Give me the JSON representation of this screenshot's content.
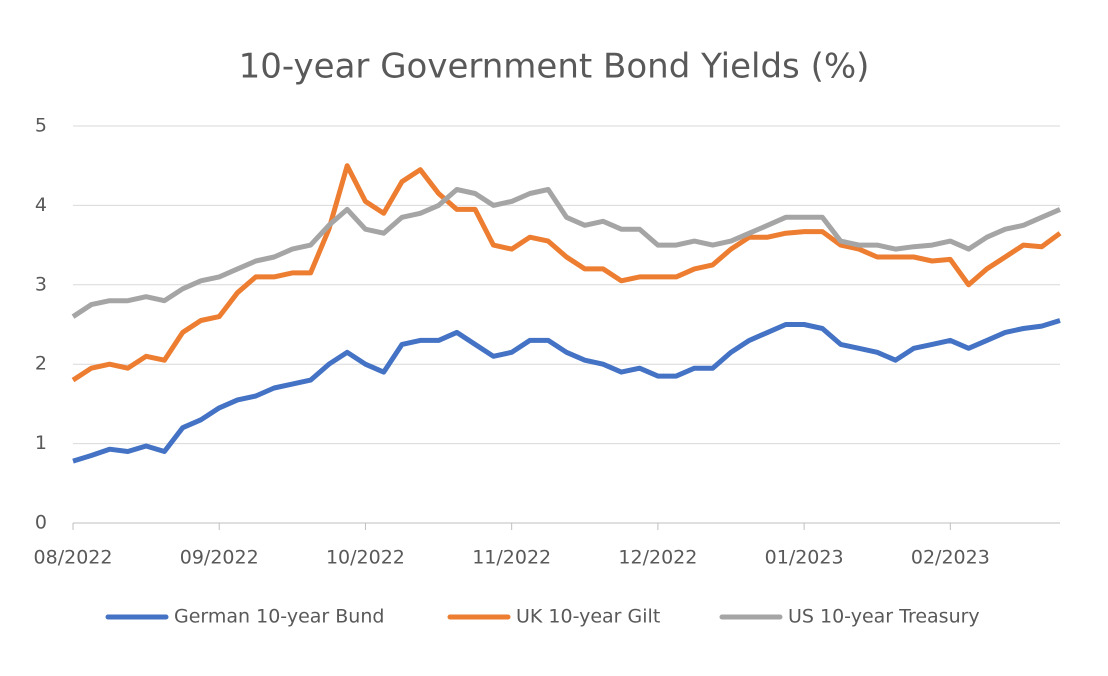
{
  "chart_data": {
    "type": "line",
    "title": "10-year Government Bond Yields (%)",
    "categories": [
      "08/2022",
      null,
      null,
      null,
      null,
      null,
      null,
      null,
      "09/2022",
      null,
      null,
      null,
      null,
      null,
      null,
      null,
      "10/2022",
      null,
      null,
      null,
      null,
      null,
      null,
      null,
      "11/2022",
      null,
      null,
      null,
      null,
      null,
      null,
      null,
      "12/2022",
      null,
      null,
      null,
      null,
      null,
      null,
      null,
      "01/2023",
      null,
      null,
      null,
      null,
      null,
      null,
      null,
      "02/2023",
      null,
      null,
      null,
      null,
      null,
      null
    ],
    "series": [
      {
        "name": "German 10-year Bund",
        "color": "#4472c4",
        "values": [
          0.78,
          0.85,
          0.93,
          0.9,
          0.97,
          0.9,
          1.2,
          1.3,
          1.45,
          1.55,
          1.6,
          1.7,
          1.75,
          1.8,
          2.0,
          2.15,
          2.0,
          1.9,
          2.25,
          2.3,
          2.3,
          2.4,
          2.25,
          2.1,
          2.15,
          2.3,
          2.3,
          2.15,
          2.05,
          2.0,
          1.9,
          1.95,
          1.85,
          1.85,
          1.95,
          1.95,
          2.15,
          2.3,
          2.4,
          2.5,
          2.5,
          2.45,
          2.25,
          2.2,
          2.15,
          2.05,
          2.2,
          2.25,
          2.3,
          2.2,
          2.3,
          2.4,
          2.45,
          2.48,
          2.55
        ]
      },
      {
        "name": "UK 10-year Gilt",
        "color": "#ed7d31",
        "values": [
          1.8,
          1.95,
          2.0,
          1.95,
          2.1,
          2.05,
          2.4,
          2.55,
          2.6,
          2.9,
          3.1,
          3.1,
          3.15,
          3.15,
          3.7,
          4.5,
          4.05,
          3.9,
          4.3,
          4.45,
          4.15,
          3.95,
          3.95,
          3.5,
          3.45,
          3.6,
          3.55,
          3.35,
          3.2,
          3.2,
          3.05,
          3.1,
          3.1,
          3.1,
          3.2,
          3.25,
          3.45,
          3.6,
          3.6,
          3.65,
          3.67,
          3.67,
          3.5,
          3.45,
          3.35,
          3.35,
          3.35,
          3.3,
          3.32,
          3.0,
          3.2,
          3.35,
          3.5,
          3.48,
          3.65
        ]
      },
      {
        "name": "US 10-year Treasury",
        "color": "#a5a5a5",
        "values": [
          2.6,
          2.75,
          2.8,
          2.8,
          2.85,
          2.8,
          2.95,
          3.05,
          3.1,
          3.2,
          3.3,
          3.35,
          3.45,
          3.5,
          3.75,
          3.95,
          3.7,
          3.65,
          3.85,
          3.9,
          4.0,
          4.2,
          4.15,
          4.0,
          4.05,
          4.15,
          4.2,
          3.85,
          3.75,
          3.8,
          3.7,
          3.7,
          3.5,
          3.5,
          3.55,
          3.5,
          3.55,
          3.65,
          3.75,
          3.85,
          3.85,
          3.85,
          3.55,
          3.5,
          3.5,
          3.45,
          3.48,
          3.5,
          3.55,
          3.45,
          3.6,
          3.7,
          3.75,
          3.85,
          3.95
        ]
      }
    ],
    "ylim": [
      0,
      5
    ],
    "yticks": [
      0,
      1,
      2,
      3,
      4,
      5
    ],
    "grid": true,
    "legend": "bottom"
  }
}
